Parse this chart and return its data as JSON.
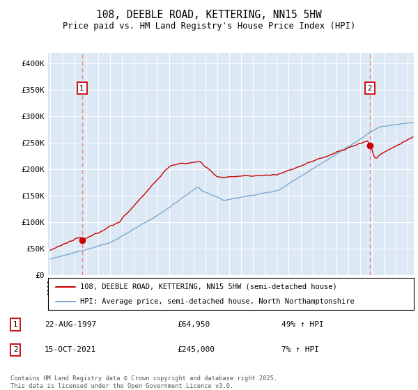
{
  "title": "108, DEEBLE ROAD, KETTERING, NN15 5HW",
  "subtitle": "Price paid vs. HM Land Registry's House Price Index (HPI)",
  "background_color": "#dce9f5",
  "ylim": [
    0,
    420000
  ],
  "yticks": [
    0,
    50000,
    100000,
    150000,
    200000,
    250000,
    300000,
    350000,
    400000
  ],
  "ytick_labels": [
    "£0",
    "£50K",
    "£100K",
    "£150K",
    "£200K",
    "£250K",
    "£300K",
    "£350K",
    "£400K"
  ],
  "xlim_start": 1994.8,
  "xlim_end": 2025.5,
  "red_line_label": "108, DEEBLE ROAD, KETTERING, NN15 5HW (semi-detached house)",
  "blue_line_label": "HPI: Average price, semi-detached house, North Northamptonshire",
  "sale1_date": "22-AUG-1997",
  "sale1_price": 64950,
  "sale1_hpi_text": "49% ↑ HPI",
  "sale1_year": 1997.64,
  "sale2_date": "15-OCT-2021",
  "sale2_price": 245000,
  "sale2_hpi_text": "7% ↑ HPI",
  "sale2_year": 2021.79,
  "footnote_line1": "Contains HM Land Registry data © Crown copyright and database right 2025.",
  "footnote_line2": "This data is licensed under the Open Government Licence v3.0.",
  "red_color": "#cc0000",
  "blue_color": "#7ba7cc",
  "dashed_color": "#ee8888",
  "grid_color": "white",
  "box_color": "#cc0000"
}
